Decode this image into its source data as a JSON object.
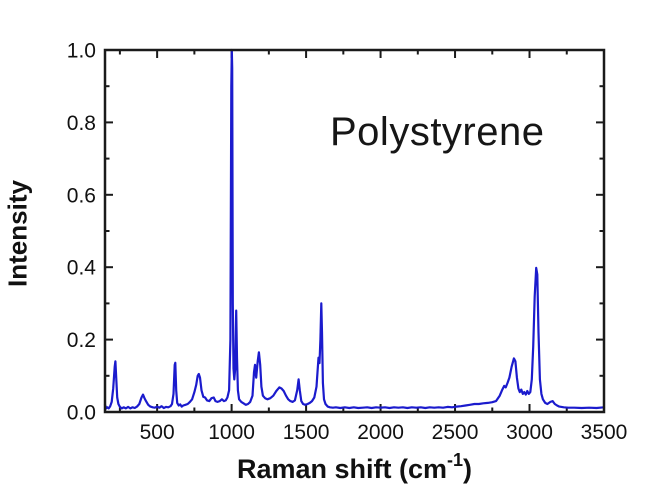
{
  "figure": {
    "annotation": "Polystyrene",
    "ylabel": "Intensity",
    "xlabel_prefix": "Raman shift (cm",
    "xlabel_sup": "-1",
    "xlabel_suffix": ")"
  },
  "chart_data": {
    "type": "line",
    "title": "",
    "annotation": "Polystyrene",
    "xlabel": "Raman shift (cm^-1)",
    "ylabel": "Intensity",
    "x_range": [
      150,
      3500
    ],
    "y_range": [
      0,
      1
    ],
    "x_tick_labels": [
      "500",
      "1000",
      "1500",
      "2000",
      "2500",
      "3000",
      "3500"
    ],
    "x_major_ticks": [
      500,
      1000,
      1500,
      2000,
      2500,
      3000,
      3500
    ],
    "x_minor_ticks": [
      250,
      750,
      1250,
      1750,
      2250,
      2750,
      3250
    ],
    "y_tick_labels": [
      "0.0",
      "0.2",
      "0.4",
      "0.6",
      "0.8",
      "1.0"
    ],
    "y_major_ticks": [
      0,
      0.2,
      0.4,
      0.6,
      0.8,
      1.0
    ],
    "y_minor_ticks": [
      0.1,
      0.3,
      0.5,
      0.7,
      0.9
    ],
    "tick_direction": "in",
    "grid": false,
    "legend": "none",
    "line_color": "#1b1bcd",
    "line_width": 2.2,
    "axis_color": "#1a1a1a",
    "text_color": "#111111",
    "main_peaks": [
      {
        "raman_shift": 220,
        "intensity": 0.14
      },
      {
        "raman_shift": 405,
        "intensity": 0.05
      },
      {
        "raman_shift": 620,
        "intensity": 0.14
      },
      {
        "raman_shift": 795,
        "intensity": 0.1
      },
      {
        "raman_shift": 1001,
        "intensity": 1.0
      },
      {
        "raman_shift": 1031,
        "intensity": 0.28
      },
      {
        "raman_shift": 1155,
        "intensity": 0.13
      },
      {
        "raman_shift": 1183,
        "intensity": 0.17
      },
      {
        "raman_shift": 1330,
        "intensity": 0.07
      },
      {
        "raman_shift": 1450,
        "intensity": 0.09
      },
      {
        "raman_shift": 1602,
        "intensity": 0.3
      },
      {
        "raman_shift": 2900,
        "intensity": 0.15
      },
      {
        "raman_shift": 3050,
        "intensity": 0.4
      }
    ],
    "series": [
      {
        "name": "polystyrene-raman-spectrum",
        "points": [
          [
            150,
            0.02
          ],
          [
            158,
            0.01
          ],
          [
            165,
            0.013
          ],
          [
            175,
            0.01
          ],
          [
            185,
            0.016
          ],
          [
            195,
            0.028
          ],
          [
            205,
            0.065
          ],
          [
            215,
            0.125
          ],
          [
            220,
            0.14
          ],
          [
            226,
            0.09
          ],
          [
            232,
            0.04
          ],
          [
            240,
            0.022
          ],
          [
            250,
            0.014
          ],
          [
            262,
            0.01
          ],
          [
            275,
            0.013
          ],
          [
            290,
            0.01
          ],
          [
            305,
            0.014
          ],
          [
            320,
            0.01
          ],
          [
            335,
            0.013
          ],
          [
            350,
            0.011
          ],
          [
            365,
            0.015
          ],
          [
            380,
            0.022
          ],
          [
            395,
            0.04
          ],
          [
            405,
            0.048
          ],
          [
            415,
            0.038
          ],
          [
            425,
            0.03
          ],
          [
            440,
            0.02
          ],
          [
            455,
            0.015
          ],
          [
            470,
            0.013
          ],
          [
            485,
            0.012
          ],
          [
            500,
            0.015
          ],
          [
            515,
            0.012
          ],
          [
            530,
            0.016
          ],
          [
            545,
            0.011
          ],
          [
            560,
            0.014
          ],
          [
            575,
            0.013
          ],
          [
            590,
            0.016
          ],
          [
            600,
            0.022
          ],
          [
            610,
            0.05
          ],
          [
            618,
            0.13
          ],
          [
            622,
            0.136
          ],
          [
            628,
            0.06
          ],
          [
            635,
            0.025
          ],
          [
            645,
            0.018
          ],
          [
            655,
            0.021
          ],
          [
            665,
            0.015
          ],
          [
            675,
            0.018
          ],
          [
            690,
            0.02
          ],
          [
            705,
            0.022
          ],
          [
            720,
            0.028
          ],
          [
            735,
            0.035
          ],
          [
            750,
            0.055
          ],
          [
            762,
            0.075
          ],
          [
            772,
            0.1
          ],
          [
            780,
            0.105
          ],
          [
            788,
            0.095
          ],
          [
            798,
            0.06
          ],
          [
            810,
            0.042
          ],
          [
            822,
            0.04
          ],
          [
            835,
            0.032
          ],
          [
            850,
            0.03
          ],
          [
            865,
            0.038
          ],
          [
            880,
            0.04
          ],
          [
            892,
            0.03
          ],
          [
            905,
            0.028
          ],
          [
            920,
            0.03
          ],
          [
            935,
            0.035
          ],
          [
            948,
            0.03
          ],
          [
            960,
            0.032
          ],
          [
            972,
            0.04
          ],
          [
            983,
            0.06
          ],
          [
            992,
            0.2
          ],
          [
            998,
            0.9
          ],
          [
            1001,
            1.0
          ],
          [
            1004,
            0.95
          ],
          [
            1008,
            0.3
          ],
          [
            1013,
            0.12
          ],
          [
            1018,
            0.09
          ],
          [
            1024,
            0.12
          ],
          [
            1031,
            0.28
          ],
          [
            1036,
            0.15
          ],
          [
            1042,
            0.06
          ],
          [
            1050,
            0.035
          ],
          [
            1065,
            0.028
          ],
          [
            1080,
            0.024
          ],
          [
            1095,
            0.02
          ],
          [
            1110,
            0.022
          ],
          [
            1125,
            0.028
          ],
          [
            1140,
            0.045
          ],
          [
            1150,
            0.11
          ],
          [
            1157,
            0.13
          ],
          [
            1165,
            0.095
          ],
          [
            1175,
            0.14
          ],
          [
            1183,
            0.165
          ],
          [
            1192,
            0.13
          ],
          [
            1200,
            0.07
          ],
          [
            1210,
            0.045
          ],
          [
            1225,
            0.038
          ],
          [
            1240,
            0.035
          ],
          [
            1260,
            0.038
          ],
          [
            1280,
            0.045
          ],
          [
            1300,
            0.058
          ],
          [
            1320,
            0.068
          ],
          [
            1335,
            0.065
          ],
          [
            1350,
            0.058
          ],
          [
            1365,
            0.045
          ],
          [
            1380,
            0.035
          ],
          [
            1395,
            0.03
          ],
          [
            1410,
            0.028
          ],
          [
            1425,
            0.032
          ],
          [
            1440,
            0.06
          ],
          [
            1450,
            0.09
          ],
          [
            1458,
            0.06
          ],
          [
            1468,
            0.03
          ],
          [
            1480,
            0.022
          ],
          [
            1495,
            0.02
          ],
          [
            1510,
            0.022
          ],
          [
            1525,
            0.025
          ],
          [
            1540,
            0.03
          ],
          [
            1555,
            0.04
          ],
          [
            1570,
            0.07
          ],
          [
            1583,
            0.15
          ],
          [
            1590,
            0.135
          ],
          [
            1596,
            0.2
          ],
          [
            1602,
            0.3
          ],
          [
            1607,
            0.22
          ],
          [
            1613,
            0.08
          ],
          [
            1620,
            0.035
          ],
          [
            1630,
            0.022
          ],
          [
            1645,
            0.015
          ],
          [
            1660,
            0.013
          ],
          [
            1680,
            0.012
          ],
          [
            1700,
            0.013
          ],
          [
            1730,
            0.011
          ],
          [
            1760,
            0.013
          ],
          [
            1790,
            0.011
          ],
          [
            1820,
            0.013
          ],
          [
            1850,
            0.011
          ],
          [
            1880,
            0.012
          ],
          [
            1910,
            0.013
          ],
          [
            1940,
            0.011
          ],
          [
            1970,
            0.013
          ],
          [
            2000,
            0.012
          ],
          [
            2030,
            0.013
          ],
          [
            2060,
            0.011
          ],
          [
            2090,
            0.013
          ],
          [
            2120,
            0.012
          ],
          [
            2150,
            0.013
          ],
          [
            2180,
            0.011
          ],
          [
            2210,
            0.013
          ],
          [
            2240,
            0.012
          ],
          [
            2270,
            0.013
          ],
          [
            2300,
            0.011
          ],
          [
            2330,
            0.013
          ],
          [
            2360,
            0.012
          ],
          [
            2390,
            0.013
          ],
          [
            2420,
            0.012
          ],
          [
            2450,
            0.014
          ],
          [
            2480,
            0.013
          ],
          [
            2510,
            0.015
          ],
          [
            2540,
            0.016
          ],
          [
            2570,
            0.018
          ],
          [
            2600,
            0.02
          ],
          [
            2630,
            0.022
          ],
          [
            2660,
            0.022
          ],
          [
            2690,
            0.024
          ],
          [
            2720,
            0.025
          ],
          [
            2750,
            0.027
          ],
          [
            2775,
            0.03
          ],
          [
            2800,
            0.045
          ],
          [
            2815,
            0.06
          ],
          [
            2830,
            0.072
          ],
          [
            2840,
            0.068
          ],
          [
            2852,
            0.08
          ],
          [
            2865,
            0.095
          ],
          [
            2880,
            0.125
          ],
          [
            2895,
            0.148
          ],
          [
            2905,
            0.14
          ],
          [
            2915,
            0.095
          ],
          [
            2925,
            0.065
          ],
          [
            2935,
            0.055
          ],
          [
            2945,
            0.062
          ],
          [
            2955,
            0.05
          ],
          [
            2965,
            0.055
          ],
          [
            2975,
            0.048
          ],
          [
            2985,
            0.058
          ],
          [
            2995,
            0.05
          ],
          [
            3005,
            0.055
          ],
          [
            3015,
            0.09
          ],
          [
            3025,
            0.18
          ],
          [
            3035,
            0.32
          ],
          [
            3045,
            0.398
          ],
          [
            3052,
            0.38
          ],
          [
            3060,
            0.22
          ],
          [
            3070,
            0.09
          ],
          [
            3080,
            0.05
          ],
          [
            3090,
            0.035
          ],
          [
            3105,
            0.025
          ],
          [
            3120,
            0.022
          ],
          [
            3140,
            0.028
          ],
          [
            3155,
            0.03
          ],
          [
            3170,
            0.022
          ],
          [
            3185,
            0.018
          ],
          [
            3200,
            0.015
          ],
          [
            3230,
            0.013
          ],
          [
            3260,
            0.012
          ],
          [
            3300,
            0.012
          ],
          [
            3350,
            0.011
          ],
          [
            3400,
            0.012
          ],
          [
            3450,
            0.011
          ],
          [
            3500,
            0.013
          ]
        ]
      }
    ]
  }
}
